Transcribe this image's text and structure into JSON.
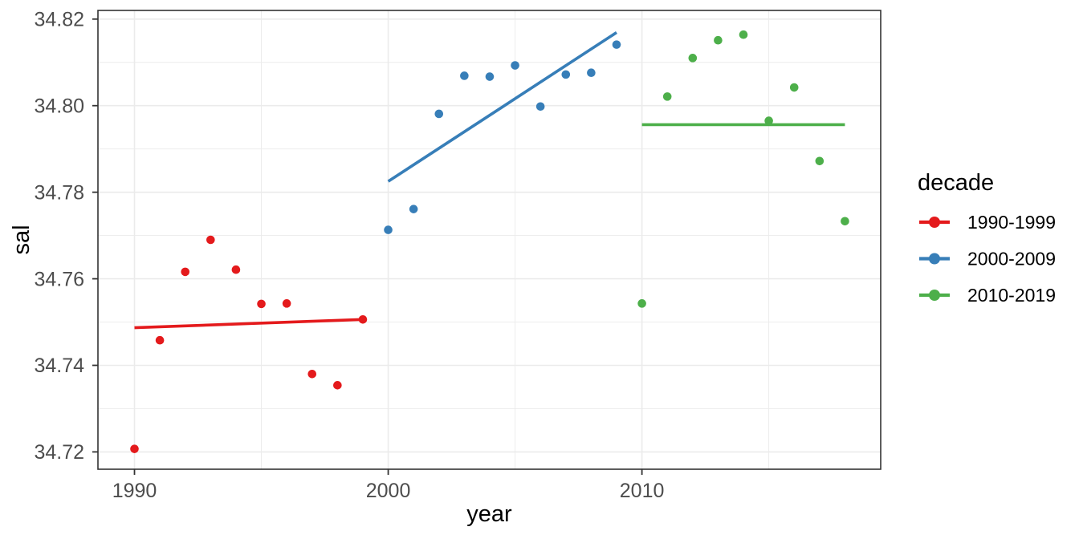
{
  "figure": {
    "background": "#FFFFFF",
    "panel_background": "#FFFFFF",
    "panel_border_color": "#333333",
    "gridline_color": "#EBEBEB",
    "tick_mark_color": "#333333",
    "tick_label_color": "#4D4D4D",
    "text_color": "#000000"
  },
  "chart_data": {
    "type": "scatter",
    "title": "",
    "xlabel": "year",
    "ylabel": "sal",
    "xlim": [
      1988.56,
      2019.41
    ],
    "ylim": [
      34.716,
      34.822
    ],
    "grid": true,
    "x_ticks": [
      {
        "value": 1990,
        "label": "1990"
      },
      {
        "value": 2000,
        "label": "2000"
      },
      {
        "value": 2010,
        "label": "2010"
      }
    ],
    "x_minor_gridlines": [
      1995,
      2005,
      2015
    ],
    "y_ticks": [
      {
        "value": 34.72,
        "label": "34.72"
      },
      {
        "value": 34.74,
        "label": "34.74"
      },
      {
        "value": 34.76,
        "label": "34.76"
      },
      {
        "value": 34.78,
        "label": "34.78"
      },
      {
        "value": 34.8,
        "label": "34.80"
      },
      {
        "value": 34.82,
        "label": "34.82"
      }
    ],
    "y_minor_gridlines": [
      34.73,
      34.75,
      34.77,
      34.79,
      34.81
    ],
    "legend": {
      "title": "decade",
      "position": "right"
    },
    "series": [
      {
        "name": "1990-1999",
        "color": "#E41A1C",
        "points": [
          [
            1990,
            34.7207
          ],
          [
            1991,
            34.7458
          ],
          [
            1992,
            34.7616
          ],
          [
            1993,
            34.769
          ],
          [
            1994,
            34.7621
          ],
          [
            1995,
            34.7542
          ],
          [
            1996,
            34.7543
          ],
          [
            1997,
            34.738
          ],
          [
            1998,
            34.7354
          ],
          [
            1999,
            34.7506
          ]
        ],
        "trend": {
          "x": [
            1990,
            1999
          ],
          "y": [
            34.7487,
            34.7506
          ]
        }
      },
      {
        "name": "2000-2009",
        "color": "#377EB8",
        "points": [
          [
            2000,
            34.7713
          ],
          [
            2001,
            34.7761
          ],
          [
            2002,
            34.7981
          ],
          [
            2003,
            34.8069
          ],
          [
            2004,
            34.8067
          ],
          [
            2005,
            34.8093
          ],
          [
            2006,
            34.7998
          ],
          [
            2007,
            34.8072
          ],
          [
            2008,
            34.8076
          ],
          [
            2009,
            34.8141
          ]
        ],
        "trend": {
          "x": [
            2000,
            2009
          ],
          "y": [
            34.7825,
            34.8169
          ]
        }
      },
      {
        "name": "2010-2019",
        "color": "#4DAF4A",
        "points": [
          [
            2010,
            34.7543
          ],
          [
            2011,
            34.8021
          ],
          [
            2012,
            34.811
          ],
          [
            2013,
            34.8151
          ],
          [
            2014,
            34.8164
          ],
          [
            2015,
            34.7965
          ],
          [
            2016,
            34.8042
          ],
          [
            2017,
            34.7872
          ],
          [
            2018,
            34.7733
          ]
        ],
        "trend": {
          "x": [
            2010,
            2018
          ],
          "y": [
            34.7956,
            34.7956
          ]
        }
      }
    ]
  }
}
